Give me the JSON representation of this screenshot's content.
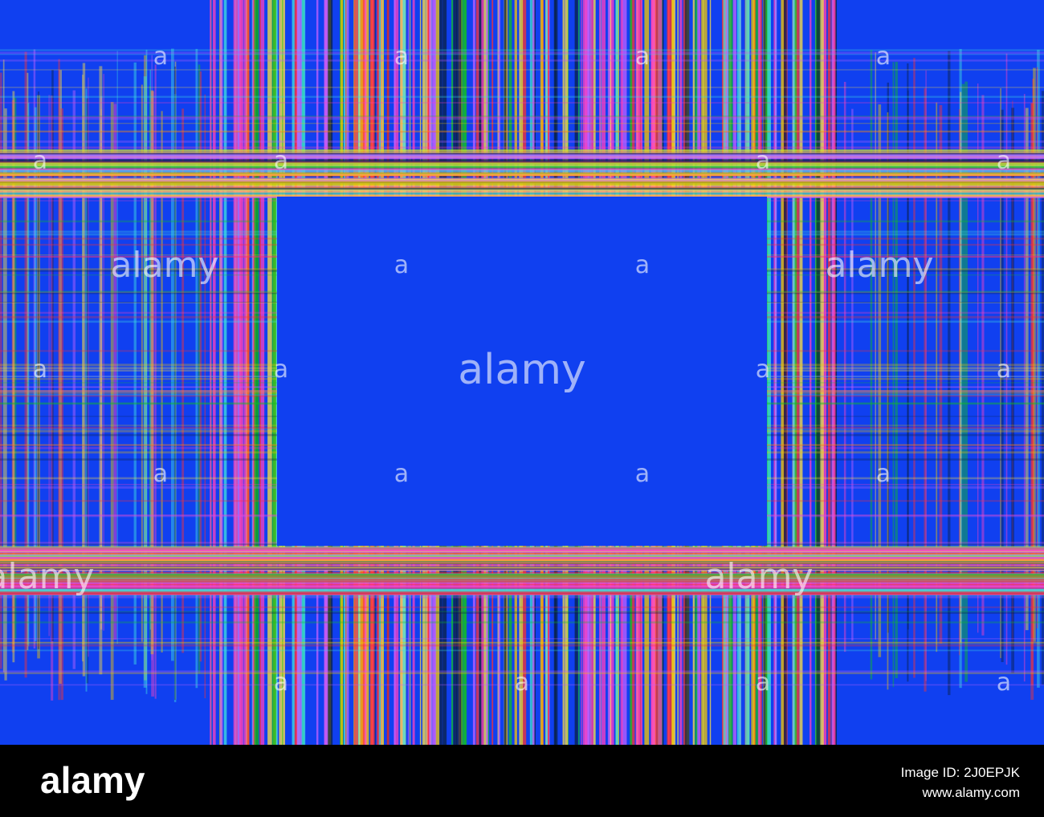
{
  "watermark": {
    "logo": "alamy",
    "mark": "a"
  },
  "footer": {
    "brand": "alamy",
    "image_id": "Image ID: 2J0EPJK",
    "url": "www.alamy.com"
  }
}
